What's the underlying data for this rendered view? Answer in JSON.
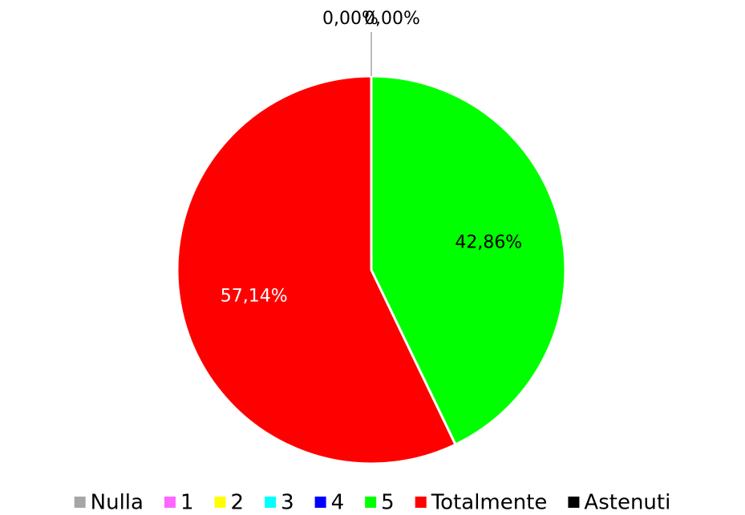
{
  "chart_data": {
    "type": "pie",
    "categories": [
      "Nulla",
      "1",
      "2",
      "3",
      "4",
      "5",
      "Totalmente",
      "Astenuti"
    ],
    "values": [
      0,
      0,
      0,
      0,
      0,
      42.86,
      57.14,
      0
    ],
    "value_labels": [
      "0,00%",
      null,
      null,
      null,
      null,
      "42,86%",
      "57,14%",
      "0,00%"
    ],
    "colors": [
      "#a6a6a6",
      "#ff66ff",
      "#ffff00",
      "#00ffff",
      "#0000ff",
      "#00ff00",
      "#ff0000",
      "#000000"
    ],
    "legend": "bottom"
  }
}
